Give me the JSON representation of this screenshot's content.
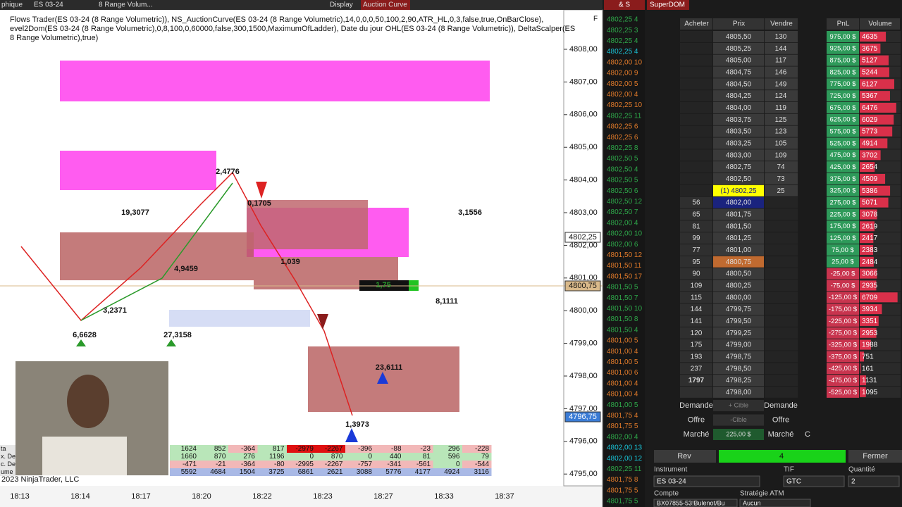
{
  "toolbar": {
    "items": [
      "phique",
      "ES 03-24",
      "8 Range Volum...",
      "Display",
      "Auction Curve"
    ]
  },
  "chart": {
    "indicator_lines": [
      "Flows Trader(ES 03-24 (8 Range Volumetric)), NS_AuctionCurve(ES 03-24 (8 Range Volumetric),14,0,0,0,50,100,2,90,ATR_HL,0,3,false,true,OnBarClose),",
      "evel2Dom(ES 03-24 (8 Range Volumetric),0,8,100,0,60000,false,300,1500,MaximumOfLadder), Date du jour OHL(ES 03-24 (8 Range Volumetric)),  DeltaScalper(ES",
      "8 Range Volumetric),true)"
    ],
    "price_labels": [
      "4808,00",
      "4807,00",
      "4806,00",
      "4805,00",
      "4804,00",
      "4803,00",
      "4802,00",
      "4801,00",
      "4800,00",
      "4799,00",
      "4798,00",
      "4797,00",
      "4796,00",
      "4795,00"
    ],
    "price_markers": [
      "4802,25",
      "4800,75",
      "4796,75"
    ],
    "time_labels": [
      "18:13",
      "18:14",
      "18:17",
      "18:20",
      "18:22",
      "18:23",
      "18:27",
      "18:33",
      "18:37"
    ],
    "annotations": [
      "2,4776",
      "19,3077",
      "3,1556",
      "6,6628",
      "27,3158",
      "4,9459",
      "3,2371",
      "1,039",
      "0,1705",
      "23,6111",
      "1,3973",
      "8,1111",
      "1,75"
    ],
    "summary": {
      "row_labels": [
        "ta",
        "x. De",
        "c. De",
        "ume"
      ],
      "rows": [
        [
          "1624",
          "852",
          "-364",
          "817",
          "-2979",
          "-2267",
          "-396",
          "-88",
          "-23",
          "296",
          "-228"
        ],
        [
          "1660",
          "870",
          "276",
          "1196",
          "0",
          "870",
          "0",
          "440",
          "81",
          "596",
          "79"
        ],
        [
          "-471",
          "-21",
          "-364",
          "-80",
          "-2995",
          "-2267",
          "-757",
          "-341",
          "-561",
          "0",
          "-544"
        ],
        [
          "5592",
          "4684",
          "1504",
          "3725",
          "6861",
          "2621",
          "3088",
          "5776",
          "4177",
          "4924",
          "3116"
        ]
      ]
    },
    "copyright": "2023 NinjaTrader, LLC",
    "panel_flag": "F"
  },
  "time_and_sales": {
    "title": "& S",
    "rows": [
      {
        "text": "4802,25 4",
        "color": "#2ea84a"
      },
      {
        "text": "4802,25 3",
        "color": "#2ea84a"
      },
      {
        "text": "4802,25 4",
        "color": "#2ea84a"
      },
      {
        "text": "4802,25 4",
        "color": "#19c3d6"
      },
      {
        "text": "4802,00 10",
        "color": "#e07a2a"
      },
      {
        "text": "4802,00 9",
        "color": "#e07a2a"
      },
      {
        "text": "4802,00 5",
        "color": "#e07a2a"
      },
      {
        "text": "4802,00 4",
        "color": "#e07a2a"
      },
      {
        "text": "4802,25 10",
        "color": "#e07a2a"
      },
      {
        "text": "4802,25 11",
        "color": "#2ea84a"
      },
      {
        "text": "4802,25 6",
        "color": "#e07a2a"
      },
      {
        "text": "4802,25 6",
        "color": "#e07a2a"
      },
      {
        "text": "4802,25 8",
        "color": "#2ea84a"
      },
      {
        "text": "4802,50 5",
        "color": "#2ea84a"
      },
      {
        "text": "4802,50 4",
        "color": "#2ea84a"
      },
      {
        "text": "4802,50 5",
        "color": "#2ea84a"
      },
      {
        "text": "4802,50 6",
        "color": "#2ea84a"
      },
      {
        "text": "4802,50 12",
        "color": "#2ea84a"
      },
      {
        "text": "4802,50 7",
        "color": "#2ea84a"
      },
      {
        "text": "4802,00 4",
        "color": "#2ea84a"
      },
      {
        "text": "4802,00 10",
        "color": "#2ea84a"
      },
      {
        "text": "4802,00 6",
        "color": "#2ea84a"
      },
      {
        "text": "4801,50 12",
        "color": "#e07a2a"
      },
      {
        "text": "4801,50 11",
        "color": "#e07a2a"
      },
      {
        "text": "4801,50 17",
        "color": "#e07a2a"
      },
      {
        "text": "4801,50 5",
        "color": "#2ea84a"
      },
      {
        "text": "4801,50 7",
        "color": "#2ea84a"
      },
      {
        "text": "4801,50 10",
        "color": "#2ea84a"
      },
      {
        "text": "4801,50 8",
        "color": "#2ea84a"
      },
      {
        "text": "4801,50 4",
        "color": "#2ea84a"
      },
      {
        "text": "4801,00 5",
        "color": "#e07a2a"
      },
      {
        "text": "4801,00 4",
        "color": "#e07a2a"
      },
      {
        "text": "4801,00 5",
        "color": "#e07a2a"
      },
      {
        "text": "4801,00 6",
        "color": "#e07a2a"
      },
      {
        "text": "4801,00 4",
        "color": "#e07a2a"
      },
      {
        "text": "4801,00 4",
        "color": "#e07a2a"
      },
      {
        "text": "4801,00 5",
        "color": "#2ea84a"
      },
      {
        "text": "4801,75 4",
        "color": "#e07a2a"
      },
      {
        "text": "4801,75 5",
        "color": "#e07a2a"
      },
      {
        "text": "4802,00 4",
        "color": "#2ea84a"
      },
      {
        "text": "4802,00 13",
        "color": "#19c3d6"
      },
      {
        "text": "4802,00 12",
        "color": "#19c3d6"
      },
      {
        "text": "4802,25 11",
        "color": "#2ea84a"
      },
      {
        "text": "4801,75 8",
        "color": "#e07a2a"
      },
      {
        "text": "4801,75 5",
        "color": "#e07a2a"
      },
      {
        "text": "4801,75 5",
        "color": "#2ea84a"
      }
    ]
  },
  "superdom": {
    "title": "SuperDOM",
    "columns": [
      "Acheter",
      "Prix",
      "Vendre",
      "PnL",
      "Volume"
    ],
    "rows": [
      [
        "",
        "4805,50",
        "130",
        "975,00 $",
        "4635"
      ],
      [
        "",
        "4805,25",
        "144",
        "925,00 $",
        "3675"
      ],
      [
        "",
        "4805,00",
        "117",
        "875,00 $",
        "5127"
      ],
      [
        "",
        "4804,75",
        "146",
        "825,00 $",
        "5244"
      ],
      [
        "",
        "4804,50",
        "149",
        "775,00 $",
        "6127"
      ],
      [
        "",
        "4804,25",
        "124",
        "725,00 $",
        "5367"
      ],
      [
        "",
        "4804,00",
        "119",
        "675,00 $",
        "6476"
      ],
      [
        "",
        "4803,75",
        "125",
        "625,00 $",
        "6029"
      ],
      [
        "",
        "4803,50",
        "123",
        "575,00 $",
        "5773"
      ],
      [
        "",
        "4803,25",
        "105",
        "525,00 $",
        "4914"
      ],
      [
        "",
        "4803,00",
        "109",
        "475,00 $",
        "3702"
      ],
      [
        "",
        "4802,75",
        "74",
        "425,00 $",
        "2654"
      ],
      [
        "",
        "4802,50",
        "73",
        "375,00 $",
        "4509"
      ],
      [
        "",
        "(1) 4802,25",
        "25",
        "325,00 $",
        "5386"
      ],
      [
        "56",
        "4802,00",
        "",
        "275,00 $",
        "5071"
      ],
      [
        "65",
        "4801,75",
        "",
        "225,00 $",
        "3078"
      ],
      [
        "81",
        "4801,50",
        "",
        "175,00 $",
        "2619"
      ],
      [
        "99",
        "4801,25",
        "",
        "125,00 $",
        "2417"
      ],
      [
        "77",
        "4801,00",
        "",
        "75,00 $",
        "2383"
      ],
      [
        "95",
        "4800,75",
        "",
        "25,00 $",
        "2484"
      ],
      [
        "90",
        "4800,50",
        "",
        "-25,00 $",
        "3066"
      ],
      [
        "109",
        "4800,25",
        "",
        "-75,00 $",
        "2935"
      ],
      [
        "115",
        "4800,00",
        "",
        "-125,00 $",
        "6709"
      ],
      [
        "144",
        "4799,75",
        "",
        "-175,00 $",
        "3934"
      ],
      [
        "141",
        "4799,50",
        "",
        "-225,00 $",
        "3351"
      ],
      [
        "120",
        "4799,25",
        "",
        "-275,00 $",
        "2953"
      ],
      [
        "175",
        "4799,00",
        "",
        "-325,00 $",
        "1988"
      ],
      [
        "193",
        "4798,75",
        "",
        "-375,00 $",
        "751"
      ],
      [
        "237",
        "4798,50",
        "",
        "-425,00 $",
        "161"
      ],
      [
        "1797",
        "4798,25",
        "",
        "-475,00 $",
        "1131"
      ],
      [
        "",
        "4798,00",
        "",
        "-525,00 $",
        "1095"
      ]
    ],
    "controls": [
      [
        "Demande",
        "+ Cible",
        "Demande"
      ],
      [
        "Offre",
        "-Cible",
        "Offre"
      ],
      [
        "Marché",
        "225,00 $",
        "Marché",
        "C"
      ]
    ],
    "buttons": [
      "Rev",
      "4",
      "Fermer"
    ],
    "field_labels": [
      "Instrument",
      "TIF",
      "Quantité"
    ],
    "field_values": [
      "ES 03-24",
      "GTC",
      "2"
    ],
    "account_labels": [
      "Compte",
      "Stratégie ATM"
    ],
    "account_values": [
      "BX07855-53!Bulenot/Bu",
      "Aucun"
    ]
  }
}
